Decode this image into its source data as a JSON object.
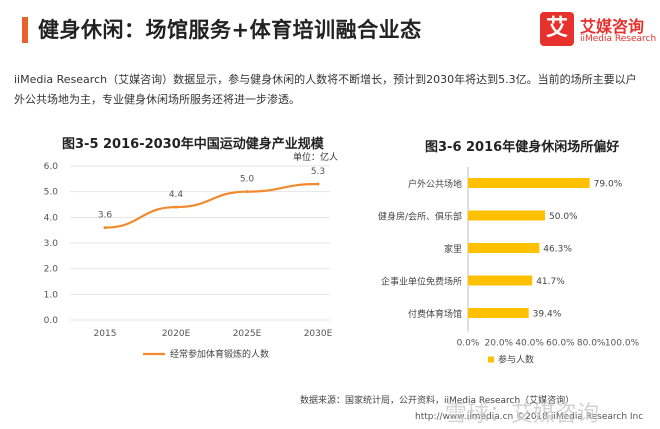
{
  "header": {
    "title": "健身休闲：场馆服务+体育培训融合业态"
  },
  "logo": {
    "mark": "艾",
    "name_cn": "艾媒咨询",
    "name_en": "iiMedia Research"
  },
  "intro": "iiMedia Research（艾媒咨询）数据显示，参与健身休闲的人数将不断增长，预计到2030年将达到5.3亿。当前的场所主要以户外公共场地为主，专业健身休闲场所服务还将进一步渗透。",
  "chart_data": [
    {
      "type": "line",
      "title": "图3-5 2016-2030年中国运动健身产业规模",
      "unit": "单位：亿人",
      "categories": [
        "2015",
        "2020E",
        "2025E",
        "2030E"
      ],
      "series": [
        {
          "name": "经常参加体育锻炼的人数",
          "values": [
            3.6,
            4.4,
            5.0,
            5.3
          ]
        }
      ],
      "data_labels": [
        "3.6",
        "4.4",
        "5.0",
        "5.3"
      ],
      "ylim": [
        0,
        6
      ],
      "yticks": [
        "0.0",
        "1.0",
        "2.0",
        "3.0",
        "4.0",
        "5.0",
        "6.0"
      ],
      "color": "#f08a2c",
      "grid": true,
      "legend": "bottom"
    },
    {
      "type": "bar",
      "orientation": "horizontal",
      "title": "图3-6 2016年健身休闲场所偏好",
      "categories": [
        "户外公共场地",
        "健身房/会所、俱乐部",
        "家里",
        "企事业单位免费场所",
        "付费体育场馆"
      ],
      "series": [
        {
          "name": "参与人数",
          "values": [
            79.0,
            50.0,
            46.3,
            41.7,
            39.4
          ]
        }
      ],
      "data_labels": [
        "79.0%",
        "50.0%",
        "46.3%",
        "41.7%",
        "39.4%"
      ],
      "xlim": [
        0,
        100
      ],
      "xticks": [
        "0.0%",
        "20.0%",
        "40.0%",
        "60.0%",
        "80.0%",
        "100.0%"
      ],
      "color": "#ffc000",
      "legend": "bottom"
    }
  ],
  "footer": {
    "source": "数据来源：国家统计局，公开资料，iiMedia Research（艾媒咨询）",
    "url": "http://www.iimedia.cn   ©2018  iiMedia Research Inc"
  },
  "watermark": "雪球：艾媒咨询"
}
